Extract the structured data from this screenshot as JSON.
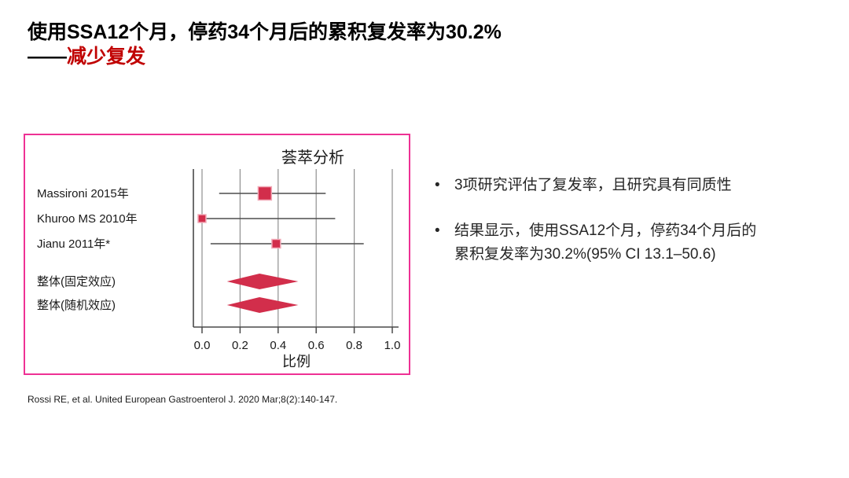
{
  "header": {
    "title_line1": "使用SSA12个月，停药34个月后的累积复发率为30.2%",
    "dash_prefix": "——",
    "title_line2_red": "减少复发",
    "red_color": "#c00000"
  },
  "chart_data": {
    "type": "forest",
    "title": "荟萃分析",
    "xlabel": "比例",
    "xlim": [
      0,
      1
    ],
    "grid": true,
    "x_ticks": [
      {
        "value": 0.0,
        "label": "0.0"
      },
      {
        "value": 0.2,
        "label": "0.2"
      },
      {
        "value": 0.4,
        "label": "0.4"
      },
      {
        "value": 0.6,
        "label": "0.6"
      },
      {
        "value": 0.8,
        "label": "0.8"
      },
      {
        "value": 1.0,
        "label": "1.0"
      }
    ],
    "studies": [
      {
        "label": "Massironi 2015年",
        "estimate": 0.33,
        "ci_low": 0.09,
        "ci_high": 0.65,
        "marker_size": 17
      },
      {
        "label": "Khuroo MS 2010年",
        "estimate": 0.0,
        "ci_low": 0.0,
        "ci_high": 0.7,
        "marker_size": 10
      },
      {
        "label": "Jianu 2011年*",
        "estimate": 0.39,
        "ci_low": 0.045,
        "ci_high": 0.85,
        "marker_size": 11
      }
    ],
    "overall": [
      {
        "label": "整体(固定效应)",
        "estimate": 0.302,
        "ci_low": 0.131,
        "ci_high": 0.506
      },
      {
        "label": "整体(随机效应)",
        "estimate": 0.302,
        "ci_low": 0.131,
        "ci_high": 0.506
      }
    ],
    "colors": {
      "marker": "#d22e4b",
      "marker_edge": "#f2aab8",
      "ci_line": "#4d4d4d",
      "axis": "#4a4a4a",
      "grid": "#8f8f8f",
      "box_border": "#ee3194",
      "text": "#1a1a1a"
    }
  },
  "bullets_marker": "•",
  "bullets": [
    {
      "text": "3项研究评估了复发率，且研究具有同质性"
    },
    {
      "text": "结果显示，使用SSA12个月，停药34个月后的\n累积复发率为30.2%(95% CI 13.1–50.6)"
    }
  ],
  "citation": "Rossi RE, et al. United European Gastroenterol J. 2020 Mar;8(2):140-147."
}
